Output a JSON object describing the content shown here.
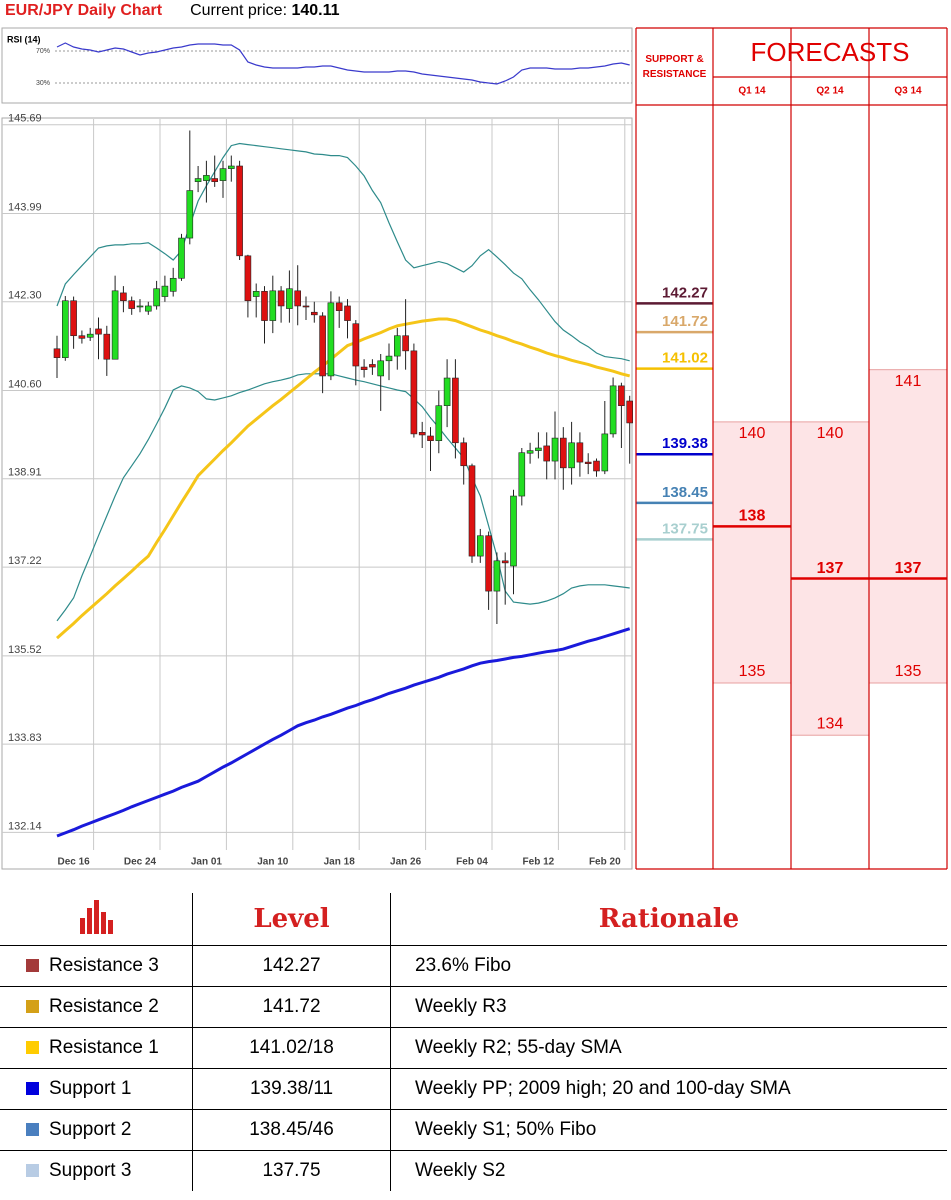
{
  "header": {
    "title": "EUR/JPY Daily Chart",
    "price_label": "Current price:",
    "price": "140.11"
  },
  "chart_data": [
    {
      "type": "candlestick",
      "categories": [
        null,
        null,
        "Dec 16",
        null,
        null,
        null,
        null,
        null,
        null,
        null,
        "Dec 24",
        null,
        null,
        null,
        null,
        null,
        null,
        null,
        "Jan 01",
        null,
        null,
        null,
        null,
        null,
        null,
        null,
        "Jan 10",
        null,
        null,
        null,
        null,
        null,
        null,
        null,
        "Jan 18",
        null,
        null,
        null,
        null,
        null,
        null,
        null,
        "Jan 26",
        null,
        null,
        null,
        null,
        null,
        null,
        null,
        "Feb 04",
        null,
        null,
        null,
        null,
        null,
        null,
        null,
        "Feb 12",
        null,
        null,
        null,
        null,
        null,
        null,
        null,
        "Feb 20",
        null,
        null,
        null
      ],
      "open": [
        141.4,
        141.23,
        142.32,
        141.65,
        141.62,
        141.78,
        141.68,
        141.2,
        142.47,
        142.32,
        142.2,
        142.12,
        142.22,
        142.4,
        142.5,
        142.75,
        143.52,
        144.6,
        144.62,
        144.66,
        144.62,
        144.85,
        144.9,
        143.18,
        142.4,
        142.5,
        141.94,
        142.51,
        142.17,
        142.51,
        142.22,
        142.1,
        142.03,
        140.88,
        142.28,
        142.22,
        141.88,
        141.05,
        141.1,
        140.88,
        141.17,
        141.26,
        141.65,
        141.36,
        139.8,
        139.73,
        139.64,
        140.31,
        140.84,
        139.6,
        139.16,
        137.43,
        137.82,
        136.76,
        137.34,
        137.24,
        138.58,
        139.4,
        139.45,
        139.54,
        139.25,
        139.69,
        139.12,
        139.6,
        139.23,
        139.25,
        139.06,
        139.77,
        140.69,
        140.4
      ],
      "high": [
        141.65,
        142.41,
        142.4,
        141.75,
        141.8,
        142.0,
        141.84,
        142.8,
        142.6,
        142.4,
        142.35,
        142.3,
        142.7,
        142.8,
        142.95,
        143.6,
        145.58,
        144.9,
        145.0,
        145.1,
        145.0,
        145.1,
        145.0,
        143.2,
        142.65,
        142.6,
        142.8,
        142.6,
        142.9,
        143.0,
        142.4,
        142.3,
        142.1,
        142.5,
        142.4,
        142.35,
        141.95,
        141.2,
        141.2,
        141.3,
        141.5,
        141.8,
        142.35,
        141.5,
        140.0,
        139.9,
        140.6,
        141.2,
        141.2,
        139.7,
        139.2,
        137.95,
        137.9,
        137.5,
        137.5,
        138.7,
        139.5,
        139.6,
        139.8,
        139.8,
        140.2,
        139.9,
        140.0,
        139.8,
        139.4,
        139.3,
        140.4,
        140.85,
        140.75,
        140.5
      ],
      "low": [
        140.84,
        141.17,
        141.4,
        141.5,
        141.55,
        141.2,
        140.88,
        141.2,
        142.1,
        142.05,
        142.1,
        142.05,
        142.15,
        142.3,
        142.4,
        142.7,
        143.4,
        144.4,
        144.2,
        144.5,
        144.29,
        144.6,
        143.1,
        142.0,
        142.0,
        141.5,
        141.7,
        141.9,
        141.9,
        141.85,
        141.95,
        141.9,
        140.55,
        140.8,
        141.8,
        141.6,
        140.7,
        140.85,
        140.9,
        140.21,
        140.8,
        141.0,
        141.0,
        139.7,
        139.5,
        139.06,
        139.4,
        139.9,
        139.3,
        138.8,
        137.3,
        137.3,
        136.4,
        136.13,
        136.5,
        136.7,
        138.4,
        139.2,
        139.3,
        138.9,
        138.9,
        138.7,
        138.8,
        138.95,
        139.0,
        138.95,
        139.0,
        139.7,
        139.5,
        139.2
      ],
      "close": [
        141.23,
        142.32,
        141.65,
        141.6,
        141.68,
        141.68,
        141.2,
        142.51,
        142.32,
        142.17,
        142.22,
        142.22,
        142.55,
        142.6,
        142.75,
        143.52,
        144.43,
        144.66,
        144.72,
        144.6,
        144.85,
        144.9,
        143.18,
        142.32,
        142.5,
        141.94,
        142.51,
        142.22,
        142.55,
        142.22,
        142.2,
        142.05,
        140.88,
        142.28,
        142.13,
        141.94,
        141.07,
        141.0,
        141.05,
        141.17,
        141.26,
        141.65,
        141.36,
        139.77,
        139.75,
        139.64,
        140.31,
        140.84,
        139.6,
        139.16,
        137.43,
        137.82,
        136.76,
        137.34,
        137.3,
        138.58,
        139.41,
        139.45,
        139.5,
        139.25,
        139.69,
        139.12,
        139.6,
        139.23,
        139.2,
        139.06,
        139.77,
        140.69,
        140.31,
        139.98
      ],
      "up_color": "#22dd22",
      "down_color": "#dd1111",
      "overlays": [
        {
          "color": "#2e8b8b",
          "values": [
            142.22,
            142.64,
            142.82,
            142.99,
            143.16,
            143.33,
            143.37,
            143.39,
            143.39,
            143.41,
            143.41,
            143.43,
            143.33,
            143.22,
            143.1,
            143.28,
            143.76,
            144.23,
            144.52,
            144.79,
            145.06,
            145.29,
            145.33,
            145.31,
            145.29,
            145.27,
            145.25,
            145.23,
            145.21,
            145.19,
            145.17,
            145.13,
            145.12,
            145.1,
            145.1,
            145.06,
            144.9,
            144.71,
            144.43,
            144.2,
            143.81,
            143.45,
            143.1,
            142.95,
            142.99,
            143.03,
            143.07,
            143.03,
            142.95,
            142.87,
            142.99,
            143.18,
            143.3,
            143.16,
            143.01,
            142.85,
            142.74,
            142.53,
            142.34,
            142.13,
            141.92,
            141.76,
            141.65,
            141.53,
            141.44,
            141.32,
            141.25,
            141.23,
            141.21,
            141.17
          ]
        },
        {
          "color": "#2e8b8b",
          "values": [
            136.19,
            136.4,
            136.63,
            137.05,
            137.43,
            137.82,
            138.2,
            138.58,
            138.93,
            139.16,
            139.39,
            139.66,
            139.96,
            140.27,
            140.61,
            140.69,
            140.65,
            140.58,
            140.44,
            140.42,
            140.46,
            140.5,
            140.56,
            140.61,
            140.67,
            140.73,
            140.77,
            140.8,
            140.84,
            140.9,
            140.92,
            140.92,
            140.92,
            140.92,
            140.88,
            140.84,
            140.8,
            140.77,
            140.73,
            140.69,
            140.65,
            140.61,
            140.58,
            140.44,
            140.29,
            140.08,
            139.89,
            139.69,
            139.5,
            139.31,
            138.93,
            138.58,
            138.01,
            137.43,
            136.76,
            136.55,
            136.53,
            136.51,
            136.53,
            136.57,
            136.63,
            136.71,
            136.82,
            136.86,
            136.88,
            136.88,
            136.88,
            136.86,
            136.84,
            136.82
          ]
        },
        {
          "color": "#f5c518",
          "values": [
            135.86,
            136.0,
            136.14,
            136.29,
            136.43,
            136.57,
            136.71,
            136.86,
            137.0,
            137.14,
            137.29,
            137.43,
            137.69,
            137.94,
            138.2,
            138.46,
            138.71,
            138.97,
            139.13,
            139.29,
            139.45,
            139.6,
            139.76,
            139.92,
            140.05,
            140.18,
            140.31,
            140.43,
            140.56,
            140.69,
            140.82,
            140.95,
            141.07,
            141.2,
            141.33,
            141.46,
            141.52,
            141.59,
            141.65,
            141.71,
            141.78,
            141.84,
            141.87,
            141.9,
            141.93,
            141.95,
            141.97,
            141.97,
            141.94,
            141.88,
            141.82,
            141.76,
            141.71,
            141.65,
            141.6,
            141.54,
            141.49,
            141.43,
            141.38,
            141.32,
            141.27,
            141.23,
            141.18,
            141.14,
            141.1,
            141.05,
            141.01,
            140.97,
            140.92,
            140.88
          ]
        },
        {
          "color": "#1a1adb",
          "values": [
            132.07,
            132.13,
            132.19,
            132.26,
            132.32,
            132.38,
            132.44,
            132.5,
            132.56,
            132.63,
            132.69,
            132.75,
            132.81,
            132.87,
            132.93,
            133.0,
            133.06,
            133.12,
            133.21,
            133.3,
            133.39,
            133.47,
            133.56,
            133.65,
            133.74,
            133.83,
            133.92,
            134.0,
            134.09,
            134.18,
            134.24,
            134.29,
            134.35,
            134.4,
            134.46,
            134.52,
            134.57,
            134.63,
            134.68,
            134.74,
            134.8,
            134.85,
            134.9,
            134.96,
            135.01,
            135.06,
            135.11,
            135.17,
            135.22,
            135.27,
            135.33,
            135.38,
            135.41,
            135.43,
            135.46,
            135.49,
            135.51,
            135.54,
            135.57,
            135.6,
            135.62,
            135.65,
            135.7,
            135.75,
            135.8,
            135.84,
            135.89,
            135.94,
            135.99,
            136.04
          ]
        }
      ],
      "ylim": [
        131.4,
        145.8
      ],
      "yticks": [
        145.69,
        143.99,
        {
          "value": 142.3,
          "label": "142.30"
        },
        {
          "value": 140.6,
          "label": "140.60"
        },
        138.91,
        137.22,
        135.52,
        133.83,
        132.14
      ],
      "grid": true,
      "levels_title": "SUPPORT & RESISTANCE",
      "levels": [
        {
          "value": 142.27,
          "color": "#5c1a33"
        },
        {
          "value": 141.72,
          "color": "#d9a86a"
        },
        {
          "value": 141.02,
          "color": "#f5c000"
        },
        {
          "value": 139.38,
          "color": "#0000cc"
        },
        {
          "value": 138.45,
          "color": "#4682b4"
        },
        {
          "value": 137.75,
          "color": "#a8cfcf"
        }
      ],
      "forecasts_title": "FORECASTS",
      "forecasts": [
        {
          "name": "Q1 14",
          "high": 140,
          "mid": 138,
          "low": 135
        },
        {
          "name": "Q2 14",
          "high": 140,
          "mid": 137,
          "low": 134
        },
        {
          "name": "Q3 14",
          "high": 141,
          "mid": 137,
          "low": 135
        }
      ]
    },
    {
      "type": "line",
      "title": "RSI (14)",
      "color": "#3a3acc",
      "values": [
        75,
        80,
        75,
        72.5,
        71.25,
        68.75,
        71.25,
        73.75,
        72.5,
        68.75,
        65,
        67.5,
        68.75,
        71.25,
        73.75,
        75,
        77.5,
        78.75,
        78.75,
        78.75,
        77.5,
        77.5,
        71.25,
        56.25,
        52.5,
        50,
        48.75,
        48.75,
        48.75,
        48.75,
        50,
        50,
        51.25,
        51.25,
        48.75,
        46.25,
        45,
        43.75,
        43.75,
        43.75,
        43.75,
        45,
        45,
        43.75,
        41.25,
        40,
        38.75,
        37.5,
        36.25,
        35,
        33.75,
        31.25,
        30,
        28.75,
        32.5,
        37.5,
        46.25,
        48.75,
        48.75,
        48.75,
        47.5,
        47.5,
        47.5,
        48.75,
        48.75,
        50,
        51.25,
        53.75,
        55,
        52.5
      ],
      "ylim": [
        5,
        95
      ],
      "yticks": [
        {
          "value": 70,
          "label": "70%"
        },
        {
          "value": 30,
          "label": "30%"
        }
      ]
    }
  ],
  "table": {
    "columns": [
      "Level",
      "Rationale"
    ],
    "rows": [
      {
        "name": "Resistance 3",
        "level": "142.27",
        "rationale": "23.6% Fibo",
        "color": "#a33a3a"
      },
      {
        "name": "Resistance 2",
        "level": "141.72",
        "rationale": "Weekly R3",
        "color": "#d4a017"
      },
      {
        "name": "Resistance 1",
        "level": "141.02/18",
        "rationale": "Weekly R2; 55-day SMA",
        "color": "#ffcc00"
      },
      {
        "name": "Support 1",
        "level": "139.38/11",
        "rationale": "Weekly PP; 2009 high; 20 and 100-day SMA",
        "color": "#0000dd"
      },
      {
        "name": "Support 2",
        "level": "138.45/46",
        "rationale": "Weekly S1; 50% Fibo",
        "color": "#4a7fbf"
      },
      {
        "name": "Support 3",
        "level": "137.75",
        "rationale": "Weekly S2",
        "color": "#b8cce4"
      }
    ]
  }
}
